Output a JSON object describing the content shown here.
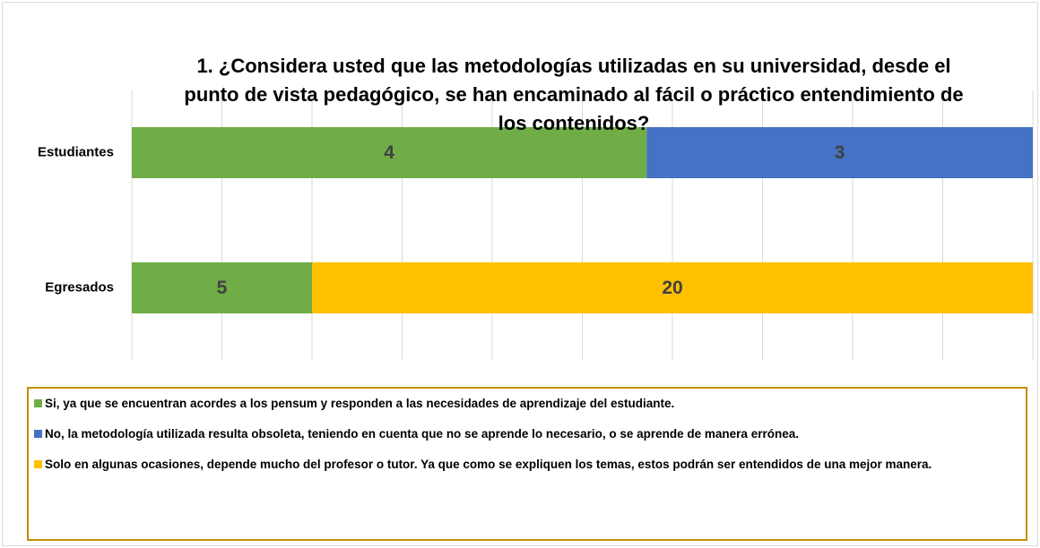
{
  "chart_data": {
    "type": "bar",
    "orientation": "horizontal",
    "stacking": "percent",
    "title": "1. ¿Considera usted que las metodologías utilizadas en su universidad, desde el punto de vista pedagógico, se han encaminado al fácil o práctico entendimiento de los contenidos?",
    "categories": [
      "Estudiantes",
      "Egresados"
    ],
    "series": [
      {
        "name": "Si, ya que se encuentran acordes a los pensum y responden a las necesidades de aprendizaje del estudiante.",
        "color": "#70ad47",
        "values": [
          4,
          5
        ]
      },
      {
        "name": "No, la metodología utilizada resulta obsoleta, teniendo en cuenta que no se aprende lo necesario, o se aprende de manera errónea.",
        "color": "#4472c4",
        "values": [
          3,
          null
        ]
      },
      {
        "name": "Solo en algunas ocasiones, depende mucho del profesor o tutor.  Ya que como se expliquen los temas, estos podrán ser entendidos de una mejor manera.",
        "color": "#ffc000",
        "values": [
          null,
          20
        ]
      }
    ],
    "xlim": [
      0,
      100
    ],
    "xticks": [
      0,
      10,
      20,
      30,
      40,
      50,
      60,
      70,
      80,
      90,
      100
    ],
    "grid": true,
    "legend": "bottom"
  }
}
